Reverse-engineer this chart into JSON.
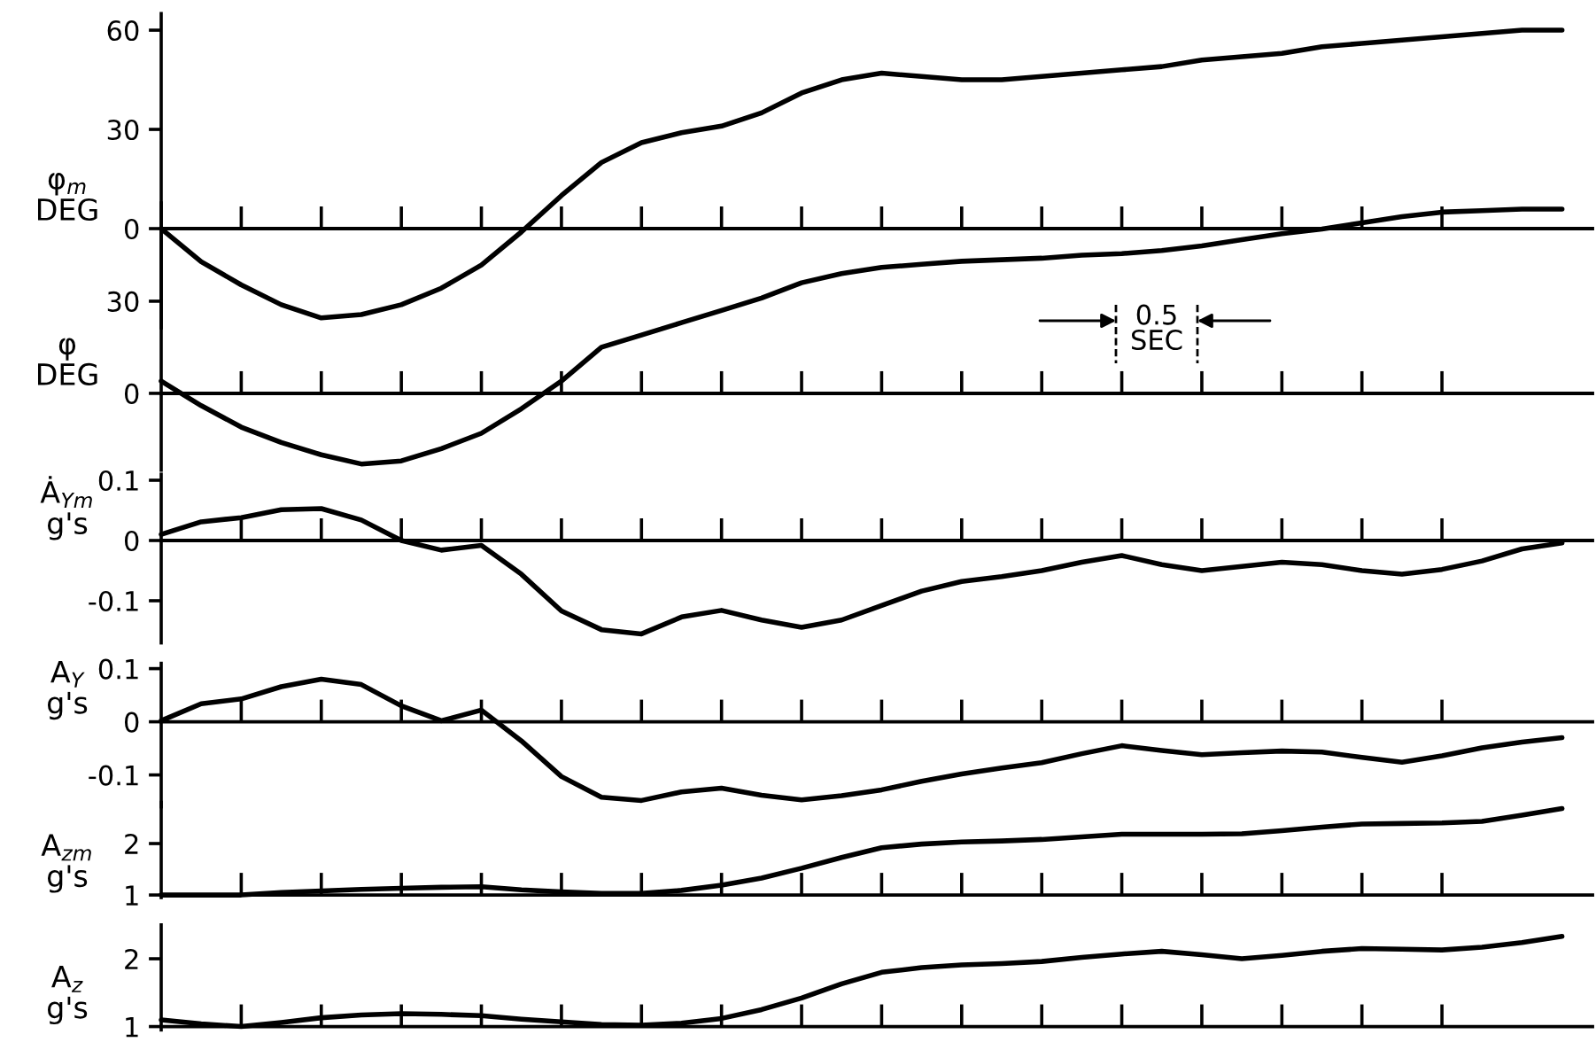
{
  "chart_data": [
    {
      "type": "line",
      "ylabel": "φ$_{m}$\nDEG",
      "color": "#000000",
      "tick_labels": "y",
      "categories": [
        null,
        null,
        null,
        null,
        null,
        null,
        null,
        null,
        null,
        null,
        null,
        null,
        null,
        null,
        null,
        null,
        null,
        null,
        null,
        null,
        null,
        null,
        null,
        null,
        null,
        null,
        null,
        null,
        null,
        null,
        null,
        null,
        null,
        null,
        null,
        null
      ],
      "ylim": [
        -30,
        65
      ],
      "yticks": [
        0,
        30,
        60
      ],
      "ref_lines": [
        {
          "axis": "y",
          "value": 0
        }
      ],
      "values": [
        0,
        -10,
        -17,
        -23,
        -27,
        -26,
        -23,
        -18,
        -11,
        -1,
        10,
        20,
        26,
        29,
        31,
        35,
        41,
        45,
        47,
        46,
        45,
        45,
        46,
        47,
        48,
        49,
        51,
        52,
        53,
        55,
        56,
        57,
        58,
        59,
        60,
        60
      ]
    },
    {
      "type": "line",
      "ylabel": "φ\nDEG",
      "color": "#000000",
      "tick_labels": "y",
      "categories": [
        null,
        null,
        null,
        null,
        null,
        null,
        null,
        null,
        null,
        null,
        null,
        null,
        null,
        null,
        null,
        null,
        null,
        null,
        null,
        null,
        null,
        null,
        null,
        null,
        null,
        null,
        null,
        null,
        null,
        null,
        null,
        null,
        null,
        null,
        null,
        null
      ],
      "ylim": [
        -25,
        62
      ],
      "yticks": [
        0,
        30
      ],
      "ref_lines": [
        {
          "axis": "y",
          "value": 0
        }
      ],
      "annotations": [
        "0.5\nSEC"
      ],
      "values": [
        4,
        -4,
        -11,
        -16,
        -20,
        -23,
        -22,
        -18,
        -13,
        -5,
        4,
        15,
        19,
        23,
        27,
        31,
        36,
        39,
        41,
        42,
        43,
        43.5,
        44,
        45,
        45.5,
        46.5,
        48,
        50,
        52,
        53.5,
        55.5,
        57.5,
        59,
        59.5,
        60,
        60
      ]
    },
    {
      "type": "line",
      "ylabel": "Ȧ$_{Ym}$\ng's",
      "color": "#000000",
      "tick_labels": "y",
      "categories": [
        null,
        null,
        null,
        null,
        null,
        null,
        null,
        null,
        null,
        null,
        null,
        null,
        null,
        null,
        null,
        null,
        null,
        null,
        null,
        null,
        null,
        null,
        null,
        null,
        null,
        null,
        null,
        null,
        null,
        null,
        null,
        null,
        null,
        null,
        null,
        null
      ],
      "ylim": [
        -0.17,
        0.11
      ],
      "yticks": [
        -0.1,
        0,
        0.1
      ],
      "ref_lines": [
        {
          "axis": "y",
          "value": 0
        }
      ],
      "values": [
        0.01,
        0.031,
        0.038,
        0.051,
        0.053,
        0.034,
        0,
        -0.016,
        -0.008,
        -0.056,
        -0.117,
        -0.148,
        -0.155,
        -0.127,
        -0.116,
        -0.132,
        -0.144,
        -0.132,
        -0.108,
        -0.084,
        -0.068,
        -0.06,
        -0.05,
        -0.036,
        -0.025,
        -0.04,
        -0.05,
        -0.043,
        -0.036,
        -0.04,
        -0.05,
        -0.056,
        -0.048,
        -0.034,
        -0.014,
        -0.004
      ]
    },
    {
      "type": "line",
      "ylabel": "A$_{Y}$\ng's",
      "color": "#000000",
      "tick_labels": "y",
      "categories": [
        null,
        null,
        null,
        null,
        null,
        null,
        null,
        null,
        null,
        null,
        null,
        null,
        null,
        null,
        null,
        null,
        null,
        null,
        null,
        null,
        null,
        null,
        null,
        null,
        null,
        null,
        null,
        null,
        null,
        null,
        null,
        null,
        null,
        null,
        null,
        null
      ],
      "ylim": [
        -0.16,
        0.11
      ],
      "yticks": [
        -0.1,
        0,
        0.1
      ],
      "ref_lines": [
        {
          "axis": "y",
          "value": 0
        }
      ],
      "values": [
        0.002,
        0.034,
        0.043,
        0.066,
        0.08,
        0.07,
        0.03,
        0.002,
        0.022,
        -0.036,
        -0.103,
        -0.142,
        -0.148,
        -0.132,
        -0.125,
        -0.138,
        -0.147,
        -0.139,
        -0.128,
        -0.112,
        -0.098,
        -0.087,
        -0.077,
        -0.06,
        -0.045,
        -0.054,
        -0.062,
        -0.058,
        -0.055,
        -0.057,
        -0.067,
        -0.076,
        -0.064,
        -0.049,
        -0.038,
        -0.03
      ]
    },
    {
      "type": "line",
      "ylabel": "A$_{zm}$\ng's",
      "color": "#000000",
      "tick_labels": "y",
      "categories": [
        null,
        null,
        null,
        null,
        null,
        null,
        null,
        null,
        null,
        null,
        null,
        null,
        null,
        null,
        null,
        null,
        null,
        null,
        null,
        null,
        null,
        null,
        null,
        null,
        null,
        null,
        null,
        null,
        null,
        null,
        null,
        null,
        null,
        null,
        null,
        null
      ],
      "ylim": [
        0.95,
        2.8
      ],
      "yticks": [
        1,
        2
      ],
      "ref_lines": [
        {
          "axis": "y",
          "value": 1
        }
      ],
      "values": [
        1,
        1,
        1,
        1.05,
        1.08,
        1.11,
        1.13,
        1.15,
        1.16,
        1.1,
        1.06,
        1.03,
        1.03,
        1.09,
        1.19,
        1.33,
        1.52,
        1.73,
        1.92,
        1.99,
        2.03,
        2.05,
        2.08,
        2.13,
        2.18,
        2.18,
        2.18,
        2.19,
        2.25,
        2.32,
        2.38,
        2.39,
        2.4,
        2.43,
        2.55,
        2.68
      ]
    },
    {
      "type": "line",
      "ylabel": "A$_{z}$\ng's",
      "color": "#000000",
      "tick_labels": "y",
      "categories": [
        null,
        null,
        null,
        null,
        null,
        null,
        null,
        null,
        null,
        null,
        null,
        null,
        null,
        null,
        null,
        null,
        null,
        null,
        null,
        null,
        null,
        null,
        null,
        null,
        null,
        null,
        null,
        null,
        null,
        null,
        null,
        null,
        null,
        null,
        null,
        null
      ],
      "ylim": [
        0.95,
        2.5
      ],
      "yticks": [
        1,
        2
      ],
      "ref_lines": [
        {
          "axis": "y",
          "value": 1
        }
      ],
      "values": [
        1.1,
        1.04,
        1.0,
        1.06,
        1.13,
        1.17,
        1.19,
        1.18,
        1.16,
        1.11,
        1.07,
        1.03,
        1.02,
        1.05,
        1.12,
        1.25,
        1.42,
        1.63,
        1.8,
        1.87,
        1.91,
        1.93,
        1.96,
        2.02,
        2.07,
        2.11,
        2.06,
        2.0,
        2.05,
        2.11,
        2.15,
        2.14,
        2.13,
        2.17,
        2.24,
        2.33
      ]
    }
  ]
}
